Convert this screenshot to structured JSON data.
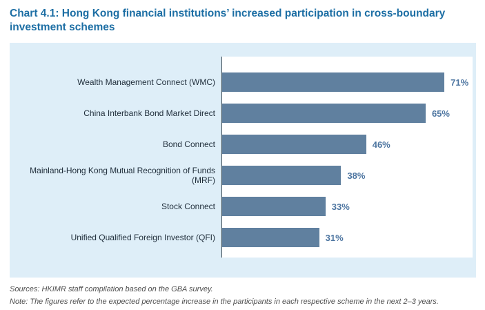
{
  "title": "Chart 4.1: Hong Kong financial institutions’ increased participation in cross-boundary investment schemes",
  "chart_data": {
    "type": "bar",
    "orientation": "horizontal",
    "title": "Chart 4.1: Hong Kong financial institutions’ increased participation in cross-boundary investment schemes",
    "categories": [
      "Wealth Management Connect (WMC)",
      "China Interbank Bond Market Direct",
      "Bond Connect",
      "Mainland-Hong Kong Mutual Recognition of Funds (MRF)",
      "Stock Connect",
      "Unified Qualified Foreign Investor (QFI)"
    ],
    "values": [
      71,
      65,
      46,
      38,
      33,
      31
    ],
    "labels": [
      "71%",
      "65%",
      "46%",
      "38%",
      "33%",
      "31%"
    ],
    "value_suffix": "%",
    "xlim": [
      0,
      80
    ],
    "grid": false,
    "legend": "none",
    "xlabel": "",
    "ylabel": ""
  },
  "footer": {
    "sources": "Sources: HKIMR staff compilation based on the GBA survey.",
    "note": "Note: The figures refer to the expected percentage increase in the participants in each respective scheme in the next 2–3 years."
  },
  "colors": {
    "title": "#1C6EA4",
    "panel_bg": "#DEEEF8",
    "plot_bg": "#FFFFFF",
    "bar": "#60809F",
    "value_label": "#4E76A1",
    "category_label": "#1F2D3A",
    "axis_line": "#36454F",
    "footer_text": "#4D4D4D"
  }
}
